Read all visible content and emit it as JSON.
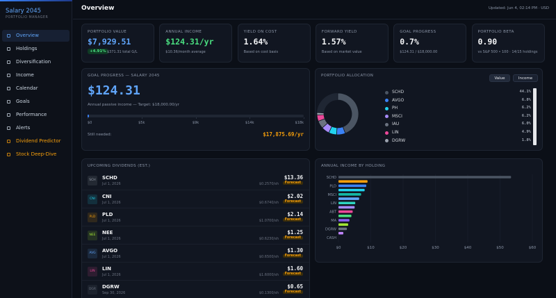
{
  "sidebar": {
    "title": "Salary 2045",
    "subtitle": "PORTFOLIO MANAGER",
    "nav": [
      {
        "label": "Overview",
        "active": true
      },
      {
        "label": "Holdings"
      },
      {
        "label": "Diversification"
      },
      {
        "label": "Income"
      },
      {
        "label": "Calendar"
      },
      {
        "label": "Goals"
      },
      {
        "label": "Performance"
      },
      {
        "label": "Alerts"
      },
      {
        "label": "Dividend Predictor",
        "accent": true
      },
      {
        "label": "Stock Deep-Dive",
        "accent": true
      }
    ]
  },
  "header": {
    "title": "Overview",
    "updated": "Updated: Jun 4, 02:14 PM · USD"
  },
  "kpis": [
    {
      "label": "PORTFOLIO VALUE",
      "value": "$7,929.51",
      "color": "#60a5fa",
      "badge": "+4.91%",
      "note": "$371.31 total G/L"
    },
    {
      "label": "ANNUAL INCOME",
      "value": "$124.31/yr",
      "color": "#4ade80",
      "note": "$10.36/month average"
    },
    {
      "label": "YIELD ON COST",
      "value": "1.64%",
      "color": "#f3f4f6",
      "note": "Based on cost basis"
    },
    {
      "label": "FORWARD YIELD",
      "value": "1.57%",
      "color": "#f3f4f6",
      "note": "Based on market value"
    },
    {
      "label": "GOAL PROGRESS",
      "value": "0.7%",
      "color": "#f3f4f6",
      "note": "$124.31 / $18,000.00"
    },
    {
      "label": "PORTFOLIO BETA",
      "value": "0.90",
      "color": "#f3f4f6",
      "note": "vs S&P 500 • 100 · 14/15 holdings"
    }
  ],
  "goal": {
    "title": "GOAL PROGRESS — SALARY 2045",
    "value": "$124.31",
    "note": "Annual passive income — Target: $18,000.00/yr",
    "progress": 124.31,
    "xlim": [
      0,
      18000
    ],
    "xticks": [
      {
        "value": 0,
        "label": "$0"
      },
      {
        "value": 4500,
        "label": "$5k"
      },
      {
        "value": 9000,
        "label": "$9k"
      },
      {
        "value": 13500,
        "label": "$14k"
      },
      {
        "value": 18000,
        "label": "$18k"
      }
    ],
    "needed_label": "Still needed:",
    "needed": "$17,875.69/yr"
  },
  "dividends": {
    "title": "UPCOMING DIVIDENDS (EST.)",
    "rows": [
      {
        "logo": "SCH",
        "ticker": "SCHD",
        "date": "Jul 1, 2026",
        "amount": "$13.36",
        "per_share": "$0.2570/sh",
        "status": "Forecast",
        "color": "#9ca3af"
      },
      {
        "logo": "CNI",
        "ticker": "CNI",
        "date": "Jul 1, 2026",
        "amount": "$2.02",
        "per_share": "$0.6740/sh",
        "status": "Forecast",
        "color": "#22d3ee"
      },
      {
        "logo": "PLD",
        "ticker": "PLD",
        "date": "Jul 1, 2026",
        "amount": "$2.14",
        "per_share": "$1.0700/sh",
        "status": "Forecast",
        "color": "#f59e0b"
      },
      {
        "logo": "NEE",
        "ticker": "NEE",
        "date": "Jul 1, 2026",
        "amount": "$1.25",
        "per_share": "$0.6230/sh",
        "status": "Forecast",
        "color": "#a3e635"
      },
      {
        "logo": "AVG",
        "ticker": "AVGO",
        "date": "Jul 1, 2026",
        "amount": "$1.30",
        "per_share": "$0.6500/sh",
        "status": "Forecast",
        "color": "#60a5fa"
      },
      {
        "logo": "LIN",
        "ticker": "LIN",
        "date": "Jul 1, 2026",
        "amount": "$1.60",
        "per_share": "$1.6000/sh",
        "status": "Forecast",
        "color": "#ec4899"
      },
      {
        "logo": "DGR",
        "ticker": "DGRW",
        "date": "Sep 30, 2026",
        "amount": "$0.65",
        "per_share": "$0.1300/sh",
        "status": "Forecast",
        "color": "#6b7280"
      }
    ]
  },
  "chart_data": [
    {
      "type": "pie",
      "title": "PORTFOLIO ALLOCATION",
      "buttons": [
        "Value",
        "Income"
      ],
      "categories": [
        "SCHD",
        "AVGO",
        "PH",
        "MSCI",
        "IAU",
        "LIN",
        "DGRW"
      ],
      "values": [
        44.1,
        6.8,
        6.2,
        6.2,
        6.0,
        4.9,
        1.8
      ],
      "value_labels": [
        "44.1%",
        "6.8%",
        "6.2%",
        "6.2%",
        "6.0%",
        "4.9%",
        "1.8%"
      ],
      "colors": [
        "#4b5563",
        "#3b82f6",
        "#22d3ee",
        "#a78bfa",
        "#6b7280",
        "#ec4899",
        "#9ca3af"
      ]
    },
    {
      "type": "bar",
      "title": "ANNUAL INCOME BY HOLDING",
      "categories": [
        "SCHD",
        null,
        "PLD",
        null,
        "MSCI",
        null,
        "LIN",
        null,
        "ABT",
        null,
        "MA",
        null,
        "DGRW",
        null,
        "CASH"
      ],
      "values": [
        53.4,
        9.0,
        8.6,
        8.1,
        7.0,
        6.4,
        5.2,
        5.0,
        4.4,
        4.0,
        3.4,
        3.0,
        2.6,
        1.5,
        0
      ],
      "colors": [
        "#4b5563",
        "#f59e0b",
        "#3b82f6",
        "#22d3ee",
        "#14b8a6",
        "#60a5fa",
        "#2dd4bf",
        "#a78bfa",
        "#ec4899",
        "#4ade80",
        "#8b5cf6",
        "#a3e635",
        "#6b7280",
        "#c084fc",
        "#9ca3af"
      ],
      "xlim": [
        0,
        60
      ],
      "xticks": [
        {
          "value": 0,
          "label": "$0"
        },
        {
          "value": 10,
          "label": "$10"
        },
        {
          "value": 20,
          "label": "$20"
        },
        {
          "value": 30,
          "label": "$30"
        },
        {
          "value": 40,
          "label": "$40"
        },
        {
          "value": 50,
          "label": "$50"
        },
        {
          "value": 60,
          "label": "$60"
        }
      ],
      "grid": true
    }
  ]
}
